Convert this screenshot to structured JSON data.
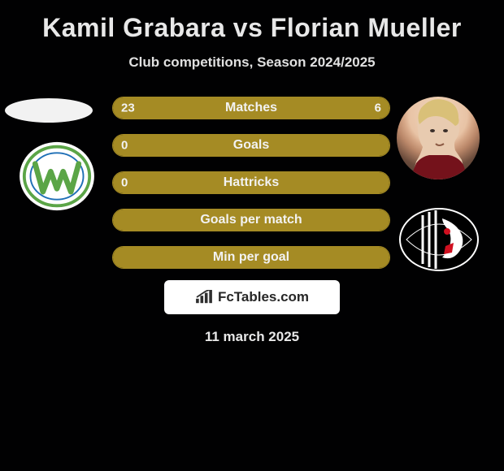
{
  "title": "Kamil Grabara vs Florian Mueller",
  "subtitle": "Club competitions, Season 2024/2025",
  "date": "11 march 2025",
  "brand": {
    "label": "FcTables.com",
    "icon_color": "#2f2f2f",
    "bg_color": "#ffffff"
  },
  "colors": {
    "bar_fill": "#a58b24",
    "bar_border": "#a58b24",
    "background": "#010102",
    "text": "#f2f2f2"
  },
  "left_player": {
    "name": "Kamil Grabara",
    "avatar_bg": "#f2f2f2"
  },
  "right_player": {
    "name": "Florian Mueller"
  },
  "left_club": {
    "name": "Wolfsburg",
    "outer_color": "#ffffff",
    "ring_color": "#5ba547",
    "w_color": "#5ba547"
  },
  "right_club": {
    "name": "Freiburg",
    "bg_color": "#000000",
    "stripe_color": "#ffffff",
    "accent_color": "#cf1020"
  },
  "bars": [
    {
      "label": "Matches",
      "left_value": "23",
      "right_value": "6",
      "left_fill_pct": 79,
      "right_fill_pct": 21,
      "show_left": true,
      "show_right": true
    },
    {
      "label": "Goals",
      "left_value": "0",
      "right_value": "",
      "left_fill_pct": 100,
      "right_fill_pct": 0,
      "show_left": true,
      "show_right": false
    },
    {
      "label": "Hattricks",
      "left_value": "0",
      "right_value": "",
      "left_fill_pct": 100,
      "right_fill_pct": 0,
      "show_left": true,
      "show_right": false
    },
    {
      "label": "Goals per match",
      "left_value": "",
      "right_value": "",
      "left_fill_pct": 100,
      "right_fill_pct": 0,
      "show_left": false,
      "show_right": false
    },
    {
      "label": "Min per goal",
      "left_value": "",
      "right_value": "",
      "left_fill_pct": 100,
      "right_fill_pct": 0,
      "show_left": false,
      "show_right": false
    }
  ]
}
